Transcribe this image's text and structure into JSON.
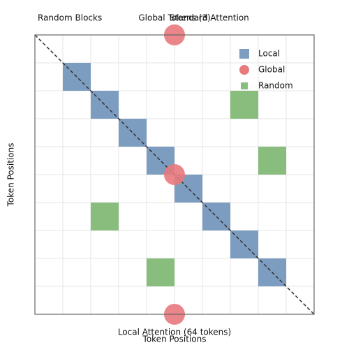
{
  "chart_data": {
    "type": "attention-map",
    "annotations": [
      "Random Blocks",
      "Global Tokens (3)",
      "Standard Attention",
      "Local Attention (64 tokens)"
    ],
    "xlabel": "Token Positions",
    "ylabel": "Token Positions",
    "xlim": [
      0,
      10
    ],
    "ylim": [
      10,
      0
    ],
    "xticks": [
      0,
      1,
      2,
      3,
      4,
      5,
      6,
      7,
      8,
      9,
      10
    ],
    "yticks": [
      0,
      1,
      2,
      3,
      4,
      5,
      6,
      7,
      8,
      9,
      10
    ],
    "grid": true,
    "legend": "upper right",
    "series": [
      {
        "name": "Local",
        "color": "#7d9dc0",
        "x": [
          1.5,
          2.5,
          3.5,
          4.5,
          5.5,
          6.5,
          7.5,
          8.5
        ],
        "y": [
          1.5,
          2.5,
          3.5,
          4.5,
          5.5,
          6.5,
          7.5,
          8.5
        ]
      },
      {
        "name": "Global",
        "color": "#e8797c",
        "x": [
          5,
          5,
          5
        ],
        "y": [
          0,
          5,
          10
        ]
      },
      {
        "name": "Random",
        "color": "#88bd7e",
        "x": [
          7.5,
          8.5,
          2.5,
          4.5
        ],
        "y": [
          2.5,
          4.5,
          6.5,
          8.5
        ]
      }
    ]
  }
}
